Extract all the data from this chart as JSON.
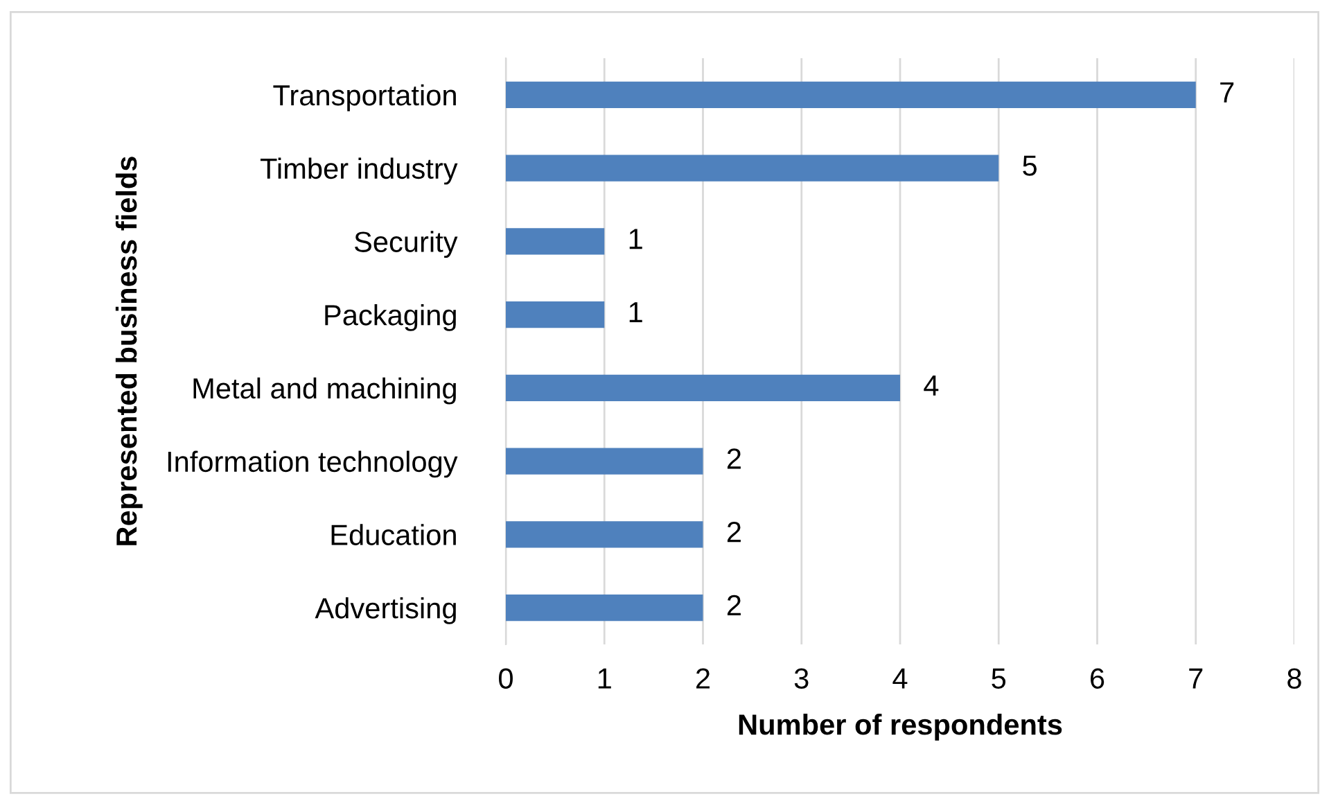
{
  "chart_data": {
    "type": "bar",
    "orientation": "horizontal",
    "categories": [
      "Transportation",
      "Timber industry",
      "Security",
      "Packaging",
      "Metal and machining",
      "Information technology",
      "Education",
      "Advertising"
    ],
    "values": [
      7,
      5,
      1,
      1,
      4,
      2,
      2,
      2
    ],
    "color": "#4f81bd",
    "xlabel": "Number of respondents",
    "ylabel": "Represented business fields",
    "xlim": [
      0,
      8
    ],
    "xticks": [
      0,
      1,
      2,
      3,
      4,
      5,
      6,
      7,
      8
    ],
    "grid": "x",
    "data_labels": true,
    "legend": false
  }
}
